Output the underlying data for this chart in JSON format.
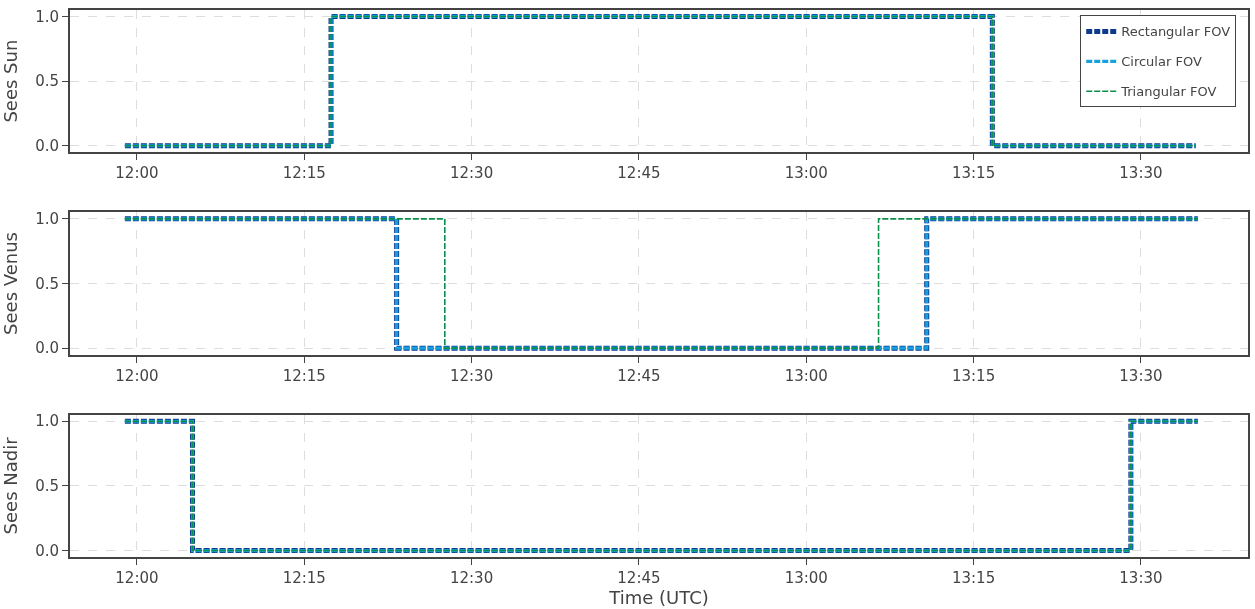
{
  "chart_data": [
    {
      "type": "step",
      "ylabel": "Sees Sun",
      "xlim": [
        11.9,
        13.66
      ],
      "ylim": [
        -0.05,
        1.05
      ],
      "xticks": [
        {
          "value": 12,
          "label": "12:00"
        },
        {
          "value": 12.25,
          "label": "12:15"
        },
        {
          "value": 12.5,
          "label": "12:30"
        },
        {
          "value": 12.75,
          "label": "12:45"
        },
        {
          "value": 13,
          "label": "13:00"
        },
        {
          "value": 13.25,
          "label": "13:15"
        },
        {
          "value": 13.5,
          "label": "13:30"
        }
      ],
      "yticks": [
        {
          "value": 0,
          "label": "0.0"
        },
        {
          "value": 0.5,
          "label": "0.5"
        },
        {
          "value": 1,
          "label": "1.0"
        }
      ],
      "grid": true,
      "legend": "top right",
      "line_style": "dashed",
      "series": [
        {
          "name": "Rectangular FOV",
          "color": "#0d3a8c",
          "x": [
            11.982,
            12.29,
            13.278,
            13.582
          ],
          "values": [
            0,
            1,
            0,
            0
          ]
        },
        {
          "name": "Circular FOV",
          "color": "#16a0e0",
          "x": [
            11.982,
            12.29,
            13.278,
            13.582
          ],
          "values": [
            0,
            1,
            0,
            0
          ]
        },
        {
          "name": "Triangular FOV",
          "color": "#0a8f48",
          "x": [
            11.982,
            12.29,
            13.278,
            13.582
          ],
          "values": [
            0,
            1,
            0,
            0
          ]
        }
      ]
    },
    {
      "type": "step",
      "ylabel": "Sees Venus",
      "xlim": [
        11.9,
        13.66
      ],
      "ylim": [
        -0.05,
        1.05
      ],
      "xticks": [
        {
          "value": 12,
          "label": "12:00"
        },
        {
          "value": 12.25,
          "label": "12:15"
        },
        {
          "value": 12.5,
          "label": "12:30"
        },
        {
          "value": 12.75,
          "label": "12:45"
        },
        {
          "value": 13,
          "label": "13:00"
        },
        {
          "value": 13.25,
          "label": "13:15"
        },
        {
          "value": 13.5,
          "label": "13:30"
        }
      ],
      "yticks": [
        {
          "value": 0,
          "label": "0.0"
        },
        {
          "value": 0.5,
          "label": "0.5"
        },
        {
          "value": 1,
          "label": "1.0"
        }
      ],
      "grid": true,
      "line_style": "dashed",
      "series": [
        {
          "color": "#0d3a8c",
          "x": [
            11.982,
            12.388,
            13.18,
            13.585
          ],
          "values": [
            1,
            0,
            1,
            1
          ]
        },
        {
          "color": "#16a0e0",
          "x": [
            11.982,
            12.388,
            13.18,
            13.585
          ],
          "values": [
            1,
            0,
            1,
            1
          ]
        },
        {
          "color": "#0a8f48",
          "x": [
            11.982,
            12.46,
            13.108,
            13.585
          ],
          "values": [
            1,
            0,
            1,
            1
          ]
        }
      ]
    },
    {
      "type": "step",
      "ylabel": "Sees Nadir",
      "xlabel": "Time (UTC)",
      "xlim": [
        11.9,
        13.66
      ],
      "ylim": [
        -0.05,
        1.05
      ],
      "xticks": [
        {
          "value": 12,
          "label": "12:00"
        },
        {
          "value": 12.25,
          "label": "12:15"
        },
        {
          "value": 12.5,
          "label": "12:30"
        },
        {
          "value": 12.75,
          "label": "12:45"
        },
        {
          "value": 13,
          "label": "13:00"
        },
        {
          "value": 13.25,
          "label": "13:15"
        },
        {
          "value": 13.5,
          "label": "13:30"
        }
      ],
      "yticks": [
        {
          "value": 0,
          "label": "0.0"
        },
        {
          "value": 0.5,
          "label": "0.5"
        },
        {
          "value": 1,
          "label": "1.0"
        }
      ],
      "grid": true,
      "line_style": "dashed",
      "series": [
        {
          "color": "#0d3a8c",
          "x": [
            11.982,
            12.083,
            13.485,
            13.585
          ],
          "values": [
            1,
            0,
            1,
            1
          ]
        },
        {
          "color": "#16a0e0",
          "x": [
            11.982,
            12.083,
            13.485,
            13.585
          ],
          "values": [
            1,
            0,
            1,
            1
          ]
        },
        {
          "color": "#0a8f48",
          "x": [
            11.982,
            12.083,
            13.485,
            13.585
          ],
          "values": [
            1,
            0,
            1,
            1
          ]
        }
      ]
    }
  ]
}
